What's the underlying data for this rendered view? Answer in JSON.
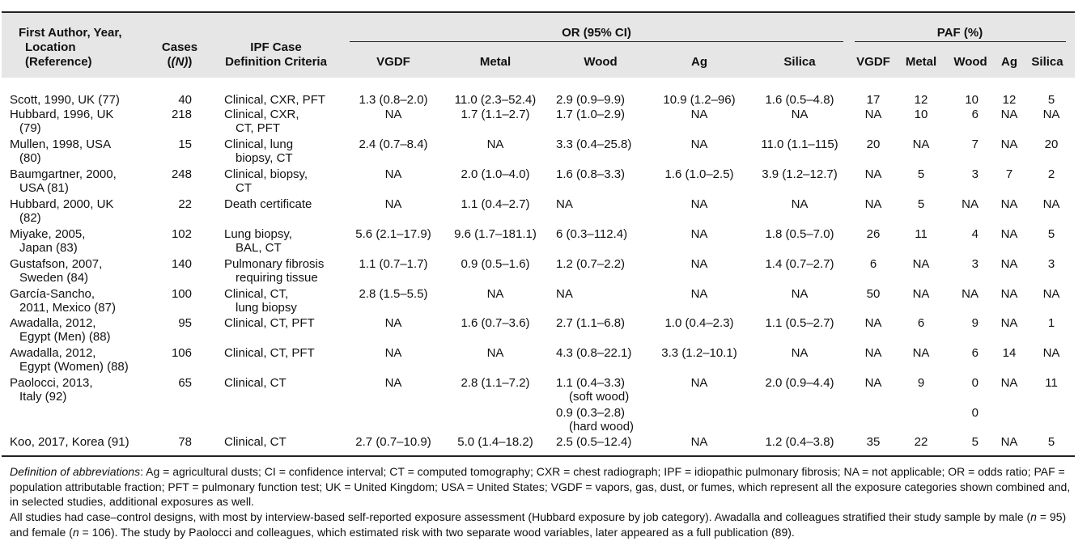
{
  "header": {
    "author_col": [
      "First Author, Year,",
      "Location",
      "(Reference)"
    ],
    "cases_col": [
      "Cases",
      "(N)"
    ],
    "ipf_col": [
      "IPF Case",
      "Definition Criteria"
    ],
    "or_group": "OR (95% CI)",
    "paf_group": "PAF (%)",
    "or_cols": [
      "VGDF",
      "Metal",
      "Wood",
      "Ag",
      "Silica"
    ],
    "paf_cols": [
      "VGDF",
      "Metal",
      "Wood",
      "Ag",
      "Silica"
    ]
  },
  "rows": [
    {
      "author": [
        "Scott, 1990, UK (77)"
      ],
      "cases": "40",
      "criteria": [
        "Clinical, CXR, PFT"
      ],
      "or_vgdf": [
        "1.3 (0.8–2.0)"
      ],
      "or_metal": [
        "11.0 (2.3–52.4)"
      ],
      "or_wood": [
        "2.9 (0.9–9.9)"
      ],
      "or_ag": [
        "10.9 (1.2–96)"
      ],
      "or_silica": [
        "1.6 (0.5–4.8)"
      ],
      "paf_vgdf": "17",
      "paf_metal": "12",
      "paf_wood": "10",
      "paf_ag": "12",
      "paf_silica": "5"
    },
    {
      "author": [
        "Hubbard, 1996, UK",
        "(79)"
      ],
      "cases": "218",
      "criteria": [
        "Clinical, CXR,",
        "CT, PFT"
      ],
      "or_vgdf": [
        "NA"
      ],
      "or_metal": [
        "1.7 (1.1–2.7)"
      ],
      "or_wood": [
        "1.7 (1.0–2.9)"
      ],
      "or_ag": [
        "NA"
      ],
      "or_silica": [
        "NA"
      ],
      "paf_vgdf": "NA",
      "paf_metal": "10",
      "paf_wood": "6",
      "paf_ag": "NA",
      "paf_silica": "NA"
    },
    {
      "author": [
        "Mullen, 1998, USA",
        "(80)"
      ],
      "cases": "15",
      "criteria": [
        "Clinical, lung",
        "biopsy, CT"
      ],
      "or_vgdf": [
        "2.4 (0.7–8.4)"
      ],
      "or_metal": [
        "NA"
      ],
      "or_wood": [
        "3.3 (0.4–25.8)"
      ],
      "or_ag": [
        "NA"
      ],
      "or_silica": [
        "11.0 (1.1–115)"
      ],
      "paf_vgdf": "20",
      "paf_metal": "NA",
      "paf_wood": "7",
      "paf_ag": "NA",
      "paf_silica": "20"
    },
    {
      "author": [
        "Baumgartner, 2000,",
        "USA (81)"
      ],
      "cases": "248",
      "criteria": [
        "Clinical, biopsy,",
        "CT"
      ],
      "or_vgdf": [
        "NA"
      ],
      "or_metal": [
        "2.0 (1.0–4.0)"
      ],
      "or_wood": [
        "1.6 (0.8–3.3)"
      ],
      "or_ag": [
        "1.6 (1.0–2.5)"
      ],
      "or_silica": [
        "3.9 (1.2–12.7)"
      ],
      "paf_vgdf": "NA",
      "paf_metal": "5",
      "paf_wood": "3",
      "paf_ag": "7",
      "paf_silica": "2"
    },
    {
      "author": [
        "Hubbard, 2000, UK",
        "(82)"
      ],
      "cases": "22",
      "criteria": [
        "Death certificate"
      ],
      "or_vgdf": [
        "NA"
      ],
      "or_metal": [
        "1.1 (0.4–2.7)"
      ],
      "or_wood": [
        "NA"
      ],
      "or_ag": [
        "NA"
      ],
      "or_silica": [
        "NA"
      ],
      "paf_vgdf": "NA",
      "paf_metal": "5",
      "paf_wood": "NA",
      "paf_ag": "NA",
      "paf_silica": "NA"
    },
    {
      "author": [
        "Miyake, 2005,",
        "Japan (83)"
      ],
      "cases": "102",
      "criteria": [
        "Lung biopsy,",
        "BAL, CT"
      ],
      "or_vgdf": [
        "5.6 (2.1–17.9)"
      ],
      "or_metal": [
        "9.6 (1.7–181.1)"
      ],
      "or_wood": [
        "6 (0.3–112.4)"
      ],
      "or_ag": [
        "NA"
      ],
      "or_silica": [
        "1.8 (0.5–7.0)"
      ],
      "paf_vgdf": "26",
      "paf_metal": "11",
      "paf_wood": "4",
      "paf_ag": "NA",
      "paf_silica": "5"
    },
    {
      "author": [
        "Gustafson, 2007,",
        "Sweden (84)"
      ],
      "cases": "140",
      "criteria": [
        "Pulmonary fibrosis",
        "requiring tissue"
      ],
      "or_vgdf": [
        "1.1 (0.7–1.7)"
      ],
      "or_metal": [
        "0.9 (0.5–1.6)"
      ],
      "or_wood": [
        "1.2 (0.7–2.2)"
      ],
      "or_ag": [
        "NA"
      ],
      "or_silica": [
        "1.4 (0.7–2.7)"
      ],
      "paf_vgdf": "6",
      "paf_metal": "NA",
      "paf_wood": "3",
      "paf_ag": "NA",
      "paf_silica": "3"
    },
    {
      "author": [
        "García-Sancho,",
        "2011, Mexico (87)"
      ],
      "cases": "100",
      "criteria": [
        "Clinical, CT,",
        "lung biopsy"
      ],
      "or_vgdf": [
        "2.8 (1.5–5.5)"
      ],
      "or_metal": [
        "NA"
      ],
      "or_wood": [
        "NA"
      ],
      "or_ag": [
        "NA"
      ],
      "or_silica": [
        "NA"
      ],
      "paf_vgdf": "50",
      "paf_metal": "NA",
      "paf_wood": "NA",
      "paf_ag": "NA",
      "paf_silica": "NA"
    },
    {
      "author": [
        "Awadalla, 2012,",
        "Egypt (Men) (88)"
      ],
      "cases": "95",
      "criteria": [
        "Clinical, CT, PFT"
      ],
      "or_vgdf": [
        "NA"
      ],
      "or_metal": [
        "1.6 (0.7–3.6)"
      ],
      "or_wood": [
        "2.7 (1.1–6.8)"
      ],
      "or_ag": [
        "1.0 (0.4–2.3)"
      ],
      "or_silica": [
        "1.1 (0.5–2.7)"
      ],
      "paf_vgdf": "NA",
      "paf_metal": "6",
      "paf_wood": "9",
      "paf_ag": "NA",
      "paf_silica": "1"
    },
    {
      "author": [
        "Awadalla, 2012,",
        "Egypt (Women) (88)"
      ],
      "cases": "106",
      "criteria": [
        "Clinical, CT, PFT"
      ],
      "or_vgdf": [
        "NA"
      ],
      "or_metal": [
        "NA"
      ],
      "or_wood": [
        "4.3 (0.8–22.1)"
      ],
      "or_ag": [
        "3.3 (1.2–10.1)"
      ],
      "or_silica": [
        "NA"
      ],
      "paf_vgdf": "NA",
      "paf_metal": "NA",
      "paf_wood": "6",
      "paf_ag": "14",
      "paf_silica": "NA"
    },
    {
      "author": [
        "Paolocci, 2013,",
        "Italy (92)"
      ],
      "cases": "65",
      "criteria": [
        "Clinical, CT"
      ],
      "or_vgdf": [
        "NA"
      ],
      "or_metal": [
        "2.8 (1.1–7.2)"
      ],
      "or_wood": [
        "1.1 (0.4–3.3)",
        "(soft wood)"
      ],
      "or_ag": [
        "NA"
      ],
      "or_silica": [
        "2.0 (0.9–4.4)"
      ],
      "paf_vgdf": "NA",
      "paf_metal": "9",
      "paf_wood": "0",
      "paf_ag": "NA",
      "paf_silica": "11"
    },
    {
      "author": [],
      "cases": "",
      "criteria": [],
      "or_vgdf": [],
      "or_metal": [],
      "or_wood": [
        "0.9 (0.3–2.8)",
        "(hard wood)"
      ],
      "or_ag": [],
      "or_silica": [],
      "paf_vgdf": "",
      "paf_metal": "",
      "paf_wood": "0",
      "paf_ag": "",
      "paf_silica": ""
    },
    {
      "author": [
        "Koo, 2017, Korea (91)"
      ],
      "cases": "78",
      "criteria": [
        "Clinical, CT"
      ],
      "or_vgdf": [
        "2.7 (0.7–10.9)"
      ],
      "or_metal": [
        "5.0 (1.4–18.2)"
      ],
      "or_wood": [
        "2.5 (0.5–12.4)"
      ],
      "or_ag": [
        "NA"
      ],
      "or_silica": [
        "1.2 (0.4–3.8)"
      ],
      "paf_vgdf": "35",
      "paf_metal": "22",
      "paf_wood": "5",
      "paf_ag": "NA",
      "paf_silica": "5"
    }
  ],
  "footnotes": {
    "abbrev_label": "Definition of abbreviations",
    "abbrev_text": ": Ag = agricultural dusts; CI = confidence interval; CT = computed tomography; CXR = chest radiograph; IPF = idiopathic pulmonary fibrosis; NA = not applicable; OR = odds ratio; PAF = population attributable fraction; PFT = pulmonary function test; UK = United Kingdom; USA = United States; VGDF = vapors, gas, dust, or fumes, which represent all the exposure categories shown combined and, in selected studies, additional exposures as well.",
    "note_part1": "All studies had case–control designs, with most by interview-based self-reported exposure assessment (Hubbard exposure by job category). Awadalla and colleagues stratified their study sample by male (",
    "note_n1": "n",
    "note_part2": " = 95) and female (",
    "note_n2": "n",
    "note_part3": " =  106). The study by Paolocci and colleagues, which estimated risk with two separate wood variables, later appeared as a full publication (89)."
  }
}
